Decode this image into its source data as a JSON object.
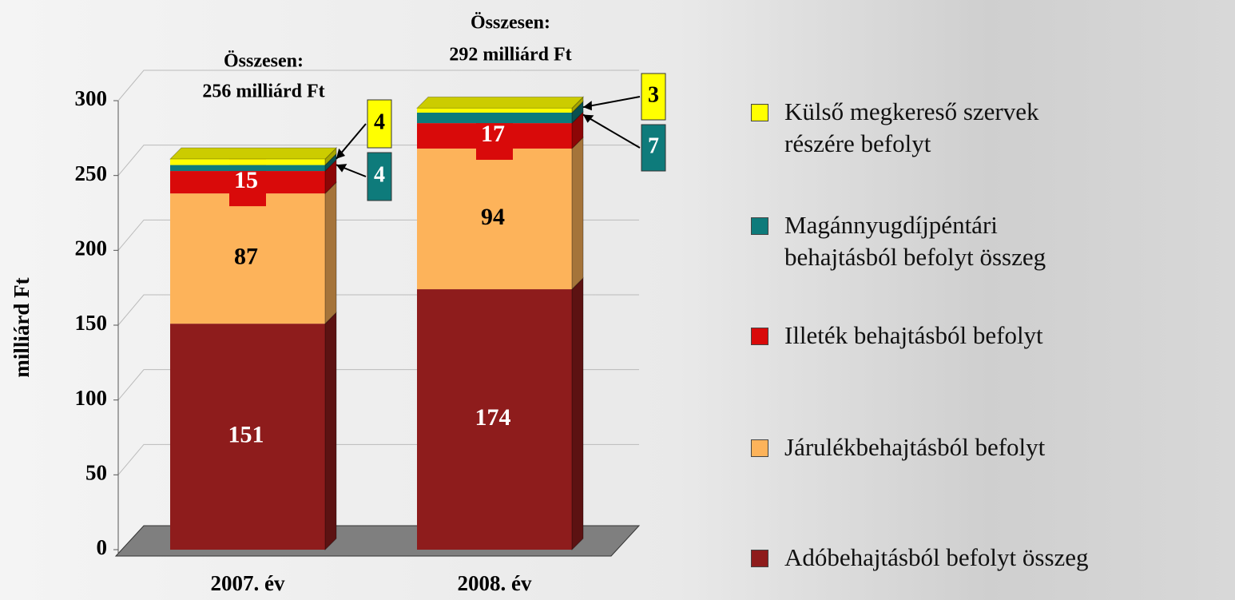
{
  "chart_data": {
    "type": "stacked-bar-3d",
    "y_axis_label": "milliárd Ft",
    "categories": [
      "2007. év",
      "2008. év"
    ],
    "series": [
      {
        "name": "Adóbehajtásból befolyt összeg",
        "color": "#8e1c1c",
        "label_color": "#ffffff",
        "values": [
          151,
          174
        ]
      },
      {
        "name": "Járulékbehajtásból befolyt",
        "color": "#fdb35a",
        "label_color": "#000000",
        "values": [
          87,
          94
        ]
      },
      {
        "name": "Illeték behajtásból befolyt",
        "color": "#d90a0a",
        "label_color": "#ffffff",
        "values": [
          15,
          17
        ]
      },
      {
        "name": "Magánnyugdíjpéntári behajtásból befolyt összeg",
        "color": "#0e7b7b",
        "label_color": "#ffffff",
        "values": [
          4,
          7
        ]
      },
      {
        "name": "Külső megkereső szervek részére befolyt",
        "color": "#ffff00",
        "label_color": "#000000",
        "values": [
          4,
          3
        ]
      }
    ],
    "total_labels": [
      [
        "Összesen:",
        "256 milliárd Ft"
      ],
      [
        "Összesen:",
        "292 milliárd Ft"
      ]
    ],
    "ylim": [
      0,
      300
    ],
    "yticks": [
      0,
      50,
      100,
      150,
      200,
      250,
      300
    ],
    "grid": true
  }
}
